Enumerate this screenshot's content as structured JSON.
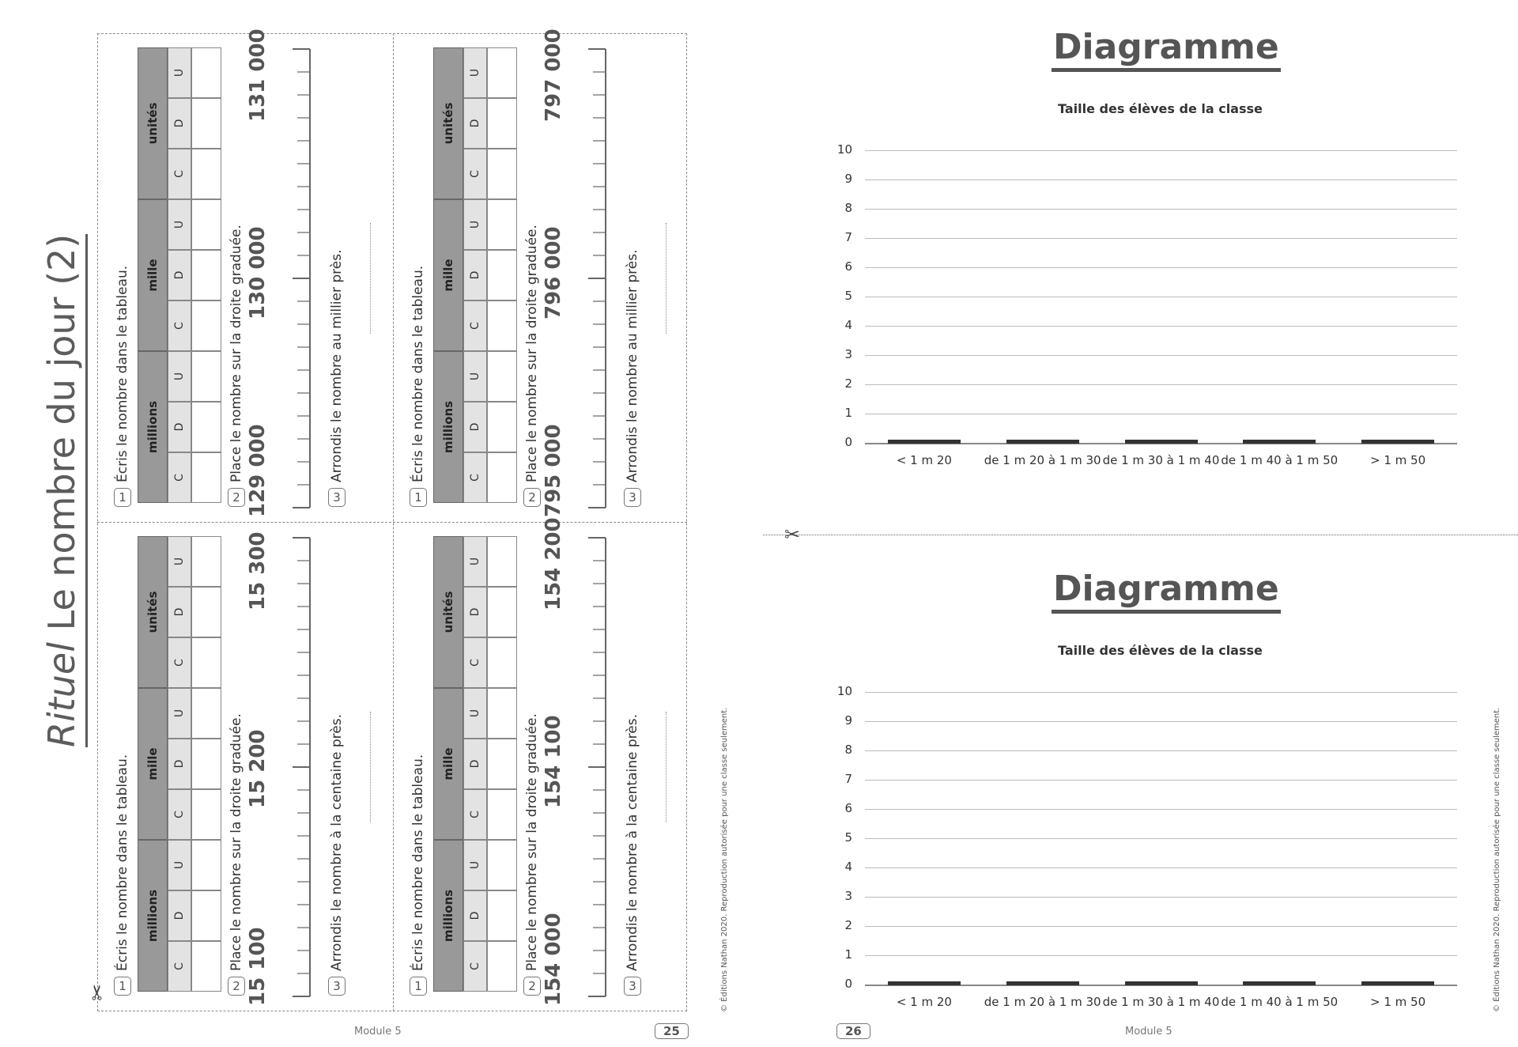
{
  "left_page": {
    "title_italic": "Rituel",
    "title_rest": " Le nombre du jour (2)",
    "instructions": {
      "q1": "Écris le nombre dans le tableau.",
      "q2": "Place le nombre sur la droite graduée.",
      "q3_thousand": "Arrondis le nombre au millier près.",
      "q3_hundred": "Arrondis le nombre à la centaine près."
    },
    "question_numbers": [
      "1",
      "2",
      "3"
    ],
    "table": {
      "groups": [
        "millions",
        "mille",
        "unités"
      ],
      "subcols": [
        "C",
        "D",
        "U"
      ]
    },
    "cards": [
      {
        "id": "top-left",
        "ticks": [
          "129 000",
          "130 000",
          "131 000"
        ],
        "q3": "Arrondis le nombre au millier près."
      },
      {
        "id": "top-right",
        "ticks": [
          "795 000",
          "796 000",
          "797 000"
        ],
        "q3": "Arrondis le nombre au millier près."
      },
      {
        "id": "bottom-left",
        "ticks": [
          "15 100",
          "15 200",
          "15 300"
        ],
        "q3": "Arrondis le nombre à la centaine près."
      },
      {
        "id": "bottom-right",
        "ticks": [
          "154 000",
          "154 100",
          "154 200"
        ],
        "q3": "Arrondis le nombre à la centaine près."
      }
    ],
    "footer_module": "Module 5",
    "page_number": "25",
    "copyright": "© Éditions Nathan 2020. Reproduction autorisée pour une classe seulement."
  },
  "right_page": {
    "footer_module": "Module 5",
    "page_number": "26",
    "copyright": "© Éditions Nathan 2020. Reproduction autorisée pour une classe seulement.",
    "diagram_heading": "Diagramme"
  },
  "chart_data": [
    {
      "type": "bar",
      "title": "Taille des élèves de la classe",
      "categories": [
        "< 1 m 20",
        "de 1 m 20 à 1 m 30",
        "de 1 m 30 à 1 m 40",
        "de 1 m 40 à 1 m 50",
        "> 1 m 50"
      ],
      "values": [
        0,
        0,
        0,
        0,
        0
      ],
      "yticks": [
        "0",
        "1",
        "2",
        "3",
        "4",
        "5",
        "6",
        "7",
        "8",
        "9",
        "10"
      ],
      "ylim": [
        0,
        10
      ],
      "grid": true
    },
    {
      "type": "bar",
      "title": "Taille des élèves de la classe",
      "categories": [
        "< 1 m 20",
        "de 1 m 20 à 1 m 30",
        "de 1 m 30 à 1 m 40",
        "de 1 m 40 à 1 m 50",
        "> 1 m 50"
      ],
      "values": [
        0,
        0,
        0,
        0,
        0
      ],
      "yticks": [
        "0",
        "1",
        "2",
        "3",
        "4",
        "5",
        "6",
        "7",
        "8",
        "9",
        "10"
      ],
      "ylim": [
        0,
        10
      ],
      "grid": true
    }
  ],
  "colors": {
    "text": "#444444",
    "table_group": "#999999",
    "table_sub": "#e3e3e3",
    "bar": "#333333",
    "grid": "#bbbbbb"
  }
}
